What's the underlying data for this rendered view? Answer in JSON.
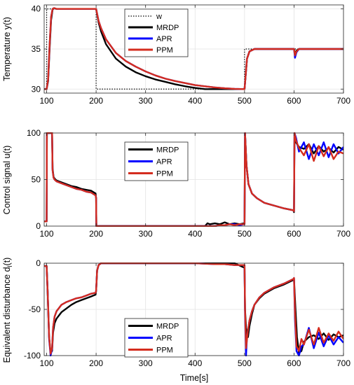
{
  "figure": {
    "xlabel_bottom": "Time[s]"
  },
  "chart_data": [
    {
      "type": "line",
      "title": "",
      "xlabel": "",
      "ylabel": "Temperature y(t)",
      "xlim": [
        95,
        700
      ],
      "ylim": [
        29.5,
        40.5
      ],
      "xticks": [
        100,
        200,
        300,
        400,
        500,
        600,
        700
      ],
      "yticks": [
        30,
        35,
        40
      ],
      "grid": true,
      "legend": {
        "placement": "top-center",
        "entries": [
          "w",
          "MRDP",
          "APR",
          "PPM"
        ]
      },
      "series": [
        {
          "name": "w",
          "style": "dotted",
          "color": "#000000",
          "x": [
            95,
            100,
            100,
            200,
            200,
            500,
            500,
            700
          ],
          "y": [
            30,
            30,
            40,
            40,
            30,
            30,
            35,
            35
          ]
        },
        {
          "name": "MRDP",
          "style": "solid",
          "color": "#000000",
          "x": [
            95,
            100,
            103,
            106,
            109,
            112,
            115,
            120,
            130,
            150,
            180,
            200,
            205,
            210,
            220,
            240,
            260,
            280,
            300,
            320,
            340,
            360,
            380,
            400,
            420,
            440,
            460,
            480,
            500,
            502,
            505,
            510,
            520,
            540,
            560,
            580,
            600,
            602,
            605,
            610,
            640,
            670,
            700
          ],
          "y": [
            30,
            30,
            31,
            35,
            38.6,
            39.9,
            40.1,
            40,
            40,
            40,
            40,
            40,
            38.3,
            37.2,
            35.6,
            33.8,
            32.8,
            32.1,
            31.6,
            31.2,
            30.9,
            30.6,
            30.35,
            30.15,
            30,
            30,
            30,
            30,
            30,
            31.5,
            33.8,
            34.7,
            35,
            35,
            35,
            35,
            35,
            34.3,
            34.8,
            35,
            35,
            35,
            35
          ]
        },
        {
          "name": "APR",
          "style": "solid",
          "color": "#0000ff",
          "x": [
            95,
            100,
            103,
            106,
            109,
            112,
            115,
            120,
            130,
            150,
            180,
            200,
            205,
            210,
            220,
            240,
            260,
            280,
            300,
            320,
            340,
            360,
            380,
            400,
            420,
            440,
            460,
            480,
            500,
            502,
            505,
            510,
            520,
            540,
            560,
            580,
            600,
            602,
            605,
            610,
            640,
            670,
            700
          ],
          "y": [
            30,
            30,
            31.2,
            35.5,
            39,
            40,
            40.1,
            40,
            40,
            40,
            40,
            40,
            38.5,
            37.6,
            36.2,
            34.5,
            33.5,
            32.8,
            32.2,
            31.7,
            31.3,
            31,
            30.75,
            30.5,
            30.35,
            30.2,
            30.1,
            30.03,
            30,
            31.5,
            33.8,
            34.7,
            35,
            35,
            35,
            35,
            35,
            33.9,
            34.6,
            35,
            35,
            35,
            35
          ]
        },
        {
          "name": "PPM",
          "style": "solid",
          "color": "#d42c1e",
          "x": [
            95,
            100,
            103,
            106,
            109,
            112,
            115,
            120,
            130,
            150,
            180,
            200,
            205,
            210,
            220,
            240,
            260,
            280,
            300,
            320,
            340,
            360,
            380,
            400,
            420,
            440,
            460,
            480,
            500,
            502,
            505,
            510,
            520,
            540,
            560,
            580,
            600,
            602,
            605,
            610,
            640,
            670,
            700
          ],
          "y": [
            30,
            30,
            31.2,
            35.5,
            39,
            40,
            40.1,
            40,
            40,
            40,
            40,
            40,
            38.5,
            37.6,
            36.2,
            34.5,
            33.5,
            32.8,
            32.2,
            31.7,
            31.3,
            31,
            30.75,
            30.5,
            30.35,
            30.2,
            30.1,
            30.03,
            30,
            31.5,
            33.8,
            34.7,
            35,
            35,
            35,
            35,
            35,
            34.2,
            34.7,
            35,
            35,
            35,
            35
          ]
        }
      ]
    },
    {
      "type": "line",
      "title": "",
      "xlabel": "",
      "ylabel": "Control signal u(t)",
      "xlim": [
        95,
        700
      ],
      "ylim": [
        0,
        100
      ],
      "xticks": [
        100,
        200,
        300,
        400,
        500,
        600,
        700
      ],
      "yticks": [
        0,
        50,
        100
      ],
      "grid": true,
      "legend": {
        "placement": "top-center",
        "entries": [
          "MRDP",
          "APR",
          "PPM"
        ]
      },
      "series": [
        {
          "name": "MRDP",
          "style": "solid",
          "color": "#000000",
          "x": [
            95,
            99,
            100,
            100.5,
            111,
            112,
            114,
            116,
            120,
            130,
            140,
            150,
            160,
            170,
            180,
            190,
            199,
            200,
            200.5,
            420,
            425,
            430,
            440,
            450,
            460,
            470,
            480,
            490,
            499,
            500,
            501,
            504,
            508,
            515,
            525,
            540,
            560,
            580,
            599,
            600,
            601,
            604,
            610,
            620,
            630,
            640,
            650,
            660,
            670,
            680,
            690,
            700
          ],
          "y": [
            5,
            5,
            5,
            100,
            100,
            62,
            53,
            51,
            49,
            47,
            45,
            43,
            42,
            40,
            39,
            38,
            35,
            30,
            0,
            0,
            3,
            2,
            3,
            2,
            4,
            2,
            3,
            2,
            3,
            3,
            100,
            65,
            45,
            35,
            30,
            25,
            22,
            19,
            17,
            15,
            100,
            90,
            85,
            83,
            88,
            78,
            86,
            80,
            84,
            79,
            85,
            82
          ]
        },
        {
          "name": "APR",
          "style": "solid",
          "color": "#0000ff",
          "x": [
            95,
            99,
            100,
            100.5,
            111,
            112,
            114,
            116,
            120,
            130,
            140,
            150,
            160,
            170,
            180,
            190,
            199,
            200,
            200.5,
            440,
            450,
            460,
            470,
            480,
            490,
            499,
            500,
            501,
            504,
            508,
            515,
            525,
            540,
            560,
            580,
            599,
            600,
            601,
            604,
            610,
            620,
            630,
            640,
            650,
            660,
            670,
            680,
            690,
            700
          ],
          "y": [
            5,
            5,
            5,
            100,
            100,
            60,
            52,
            50,
            48,
            46,
            44,
            42,
            40,
            39,
            37,
            36,
            33,
            30,
            0,
            0,
            1,
            1,
            2,
            2,
            1,
            2,
            2,
            100,
            65,
            45,
            35,
            30,
            25,
            22,
            19,
            17,
            16,
            100,
            95,
            80,
            90,
            72,
            88,
            76,
            90,
            74,
            88,
            78,
            85
          ]
        },
        {
          "name": "PPM",
          "style": "solid",
          "color": "#d42c1e",
          "x": [
            95,
            99,
            100,
            100.5,
            111,
            112,
            114,
            116,
            120,
            130,
            140,
            150,
            160,
            170,
            180,
            190,
            199,
            200,
            200.5,
            440,
            450,
            460,
            470,
            480,
            490,
            499,
            500,
            501,
            504,
            508,
            515,
            525,
            540,
            560,
            580,
            599,
            600,
            601,
            604,
            610,
            620,
            630,
            640,
            650,
            660,
            670,
            680,
            690,
            700
          ],
          "y": [
            5,
            5,
            5,
            100,
            100,
            60,
            52,
            50,
            48,
            46,
            44,
            42,
            40,
            39,
            37,
            36,
            33,
            30,
            0,
            0,
            1,
            1,
            2,
            1,
            2,
            2,
            2,
            100,
            65,
            45,
            35,
            30,
            25,
            22,
            19,
            17,
            16,
            100,
            92,
            84,
            76,
            88,
            70,
            86,
            75,
            85,
            72,
            80,
            78
          ]
        }
      ]
    },
    {
      "type": "line",
      "title": "",
      "xlabel": "Time[s]",
      "ylabel": "Equivalent disturbance d",
      "ylabel_sub": "l",
      "ylabel_suffix": "(t)",
      "xlim": [
        95,
        700
      ],
      "ylim": [
        -100,
        0
      ],
      "xticks": [
        100,
        200,
        300,
        400,
        500,
        600,
        700
      ],
      "yticks": [
        -100,
        -50,
        0
      ],
      "grid": true,
      "legend": {
        "placement": "bottom-center",
        "entries": [
          "MRDP",
          "APR",
          "PPM"
        ]
      },
      "series": [
        {
          "name": "MRDP",
          "style": "solid",
          "color": "#000000",
          "x": [
            95,
            100,
            102,
            105,
            108,
            111,
            113,
            116,
            120,
            130,
            140,
            150,
            160,
            170,
            180,
            190,
            199,
            200,
            202,
            205,
            210,
            220,
            300,
            400,
            420,
            440,
            460,
            480,
            500,
            501,
            503,
            505,
            507,
            510,
            515,
            520,
            530,
            540,
            560,
            580,
            599,
            600,
            603,
            606,
            610,
            615,
            620,
            630,
            640,
            650,
            660,
            670,
            680,
            690,
            700
          ],
          "y": [
            -3,
            -3,
            -30,
            -80,
            -97,
            -95,
            -75,
            -65,
            -60,
            -53,
            -49,
            -45,
            -42,
            -40,
            -38,
            -36,
            -34,
            -30,
            -8,
            -2,
            0,
            0,
            0,
            0,
            0,
            0,
            0,
            0,
            -5,
            -50,
            -70,
            -78,
            -80,
            -68,
            -55,
            -45,
            -38,
            -33,
            -27,
            -23,
            -18,
            -17,
            -50,
            -80,
            -97,
            -95,
            -85,
            -80,
            -78,
            -82,
            -76,
            -83,
            -77,
            -80,
            -78
          ]
        },
        {
          "name": "APR",
          "style": "solid",
          "color": "#0000ff",
          "x": [
            95,
            100,
            102,
            105,
            108,
            111,
            113,
            116,
            120,
            130,
            140,
            150,
            160,
            170,
            180,
            190,
            199,
            200,
            202,
            205,
            210,
            220,
            300,
            400,
            440,
            460,
            480,
            500,
            501,
            503,
            505,
            507,
            510,
            515,
            520,
            530,
            540,
            560,
            580,
            599,
            600,
            602,
            605,
            610,
            615,
            620,
            630,
            640,
            650,
            660,
            670,
            680,
            690,
            700
          ],
          "y": [
            -3,
            -3,
            -30,
            -82,
            -100,
            -93,
            -70,
            -58,
            -52,
            -45,
            -42,
            -40,
            -38,
            -37,
            -35,
            -33,
            -32,
            -30,
            -8,
            -2,
            0,
            0,
            0,
            0,
            -1,
            -1,
            -2,
            -2,
            -55,
            -100,
            -80,
            -72,
            -62,
            -52,
            -45,
            -37,
            -32,
            -26,
            -22,
            -17,
            -16,
            -60,
            -95,
            -100,
            -90,
            -88,
            -70,
            -92,
            -75,
            -90,
            -78,
            -88,
            -80,
            -86
          ]
        },
        {
          "name": "PPM",
          "style": "solid",
          "color": "#d42c1e",
          "x": [
            95,
            100,
            102,
            105,
            108,
            111,
            113,
            116,
            120,
            130,
            140,
            150,
            160,
            170,
            180,
            190,
            199,
            200,
            202,
            205,
            210,
            220,
            300,
            400,
            440,
            460,
            480,
            500,
            501,
            503,
            505,
            507,
            510,
            515,
            520,
            530,
            540,
            560,
            580,
            599,
            600,
            602,
            605,
            610,
            615,
            620,
            630,
            640,
            650,
            660,
            670,
            680,
            690,
            700
          ],
          "y": [
            -3,
            -3,
            -30,
            -80,
            -98,
            -92,
            -70,
            -58,
            -52,
            -45,
            -42,
            -40,
            -38,
            -37,
            -35,
            -33,
            -32,
            -30,
            -8,
            -2,
            0,
            0,
            0,
            0,
            -1,
            -1,
            -2,
            -2,
            -50,
            -92,
            -82,
            -72,
            -62,
            -52,
            -45,
            -37,
            -32,
            -26,
            -22,
            -17,
            -16,
            -55,
            -90,
            -95,
            -82,
            -88,
            -72,
            -88,
            -70,
            -86,
            -76,
            -84,
            -74,
            -82
          ]
        }
      ]
    }
  ]
}
